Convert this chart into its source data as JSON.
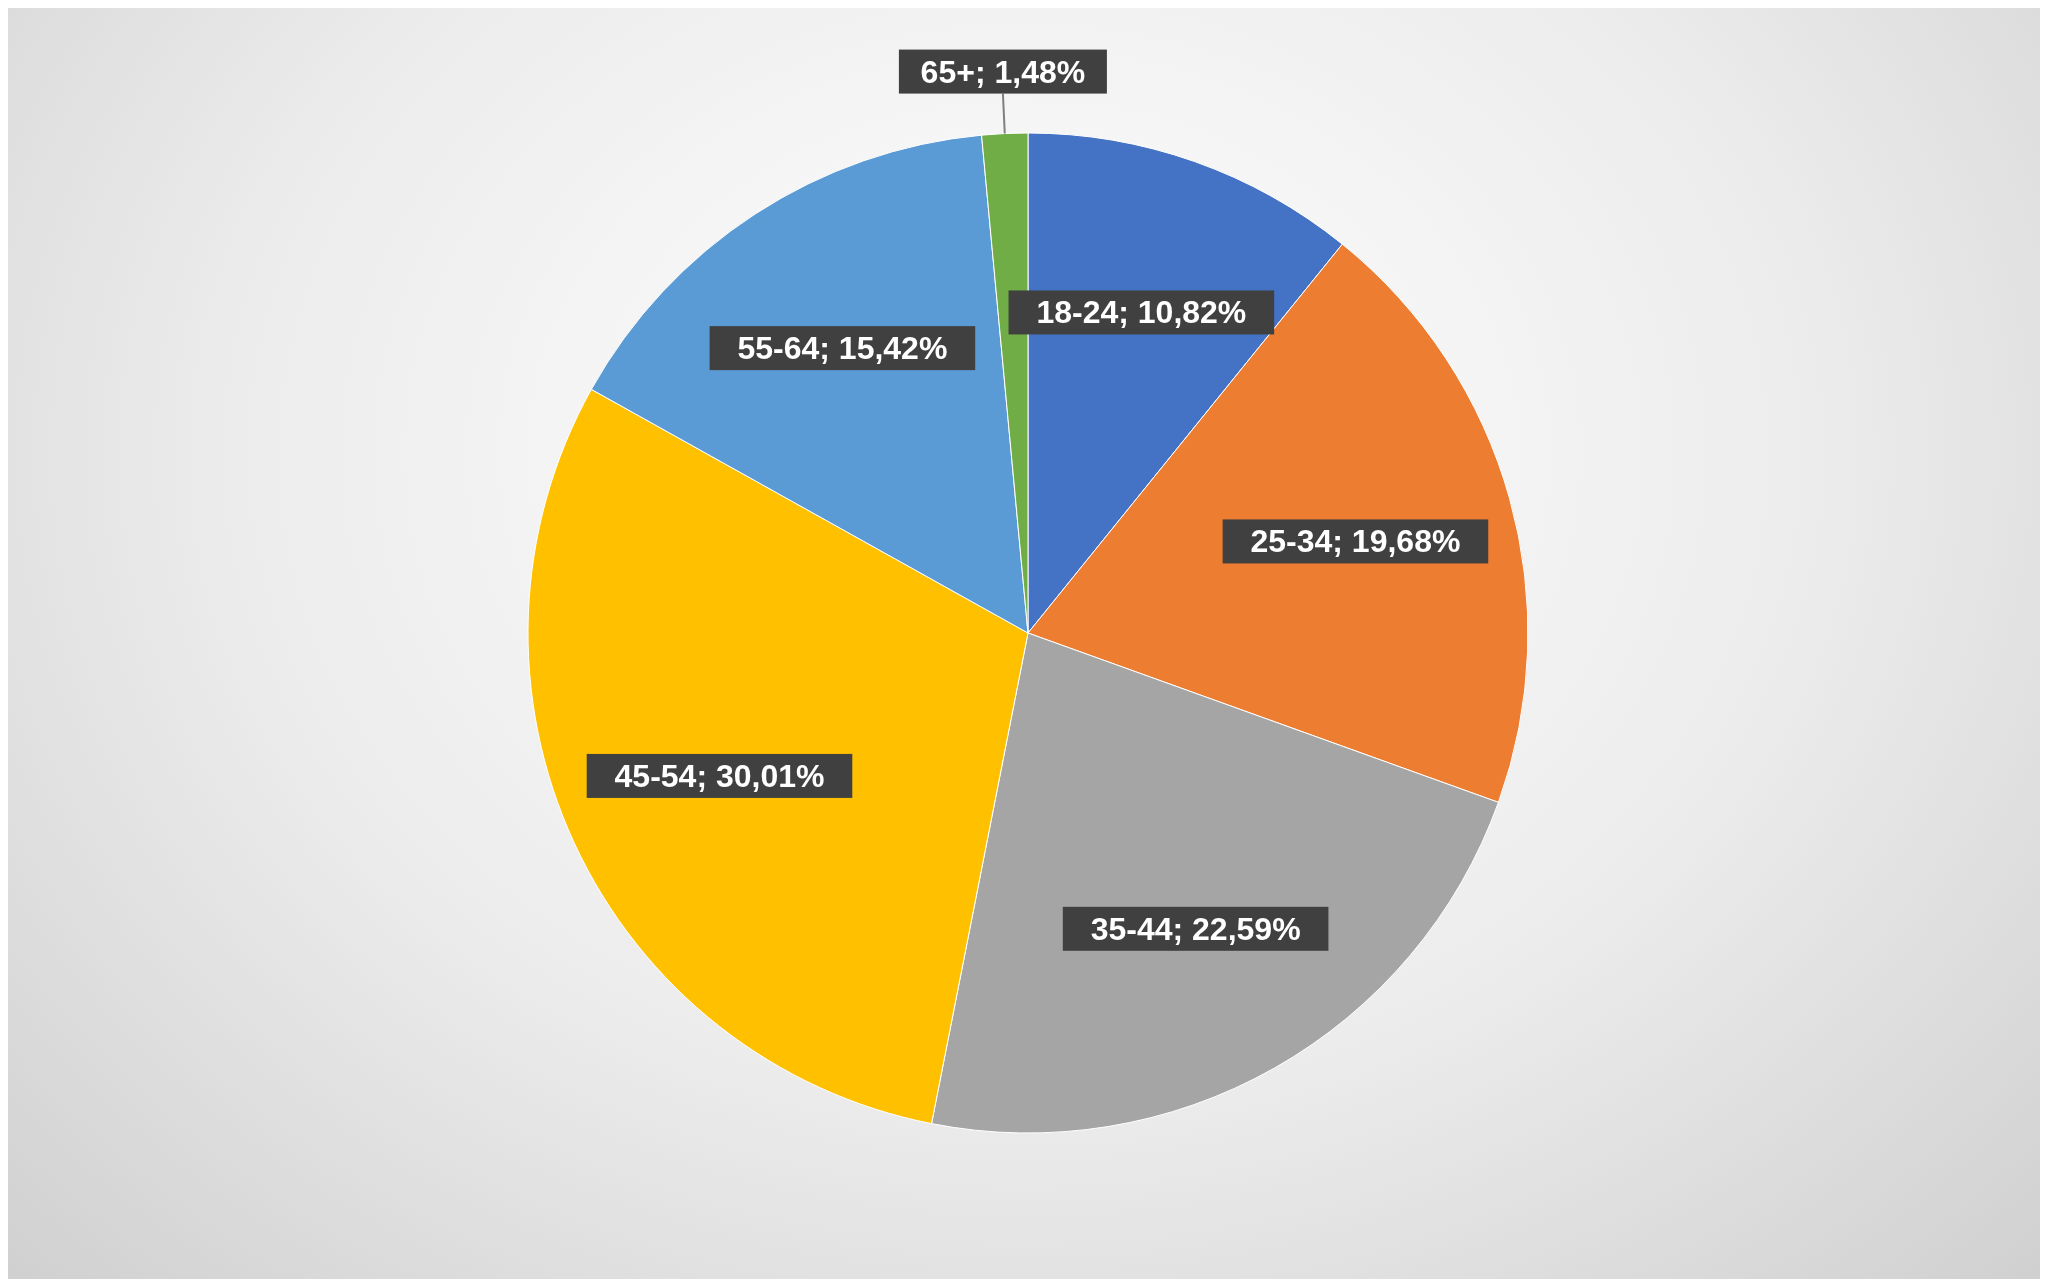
{
  "chart_data": {
    "type": "pie",
    "categories": [
      "18-24",
      "25-34",
      "35-44",
      "45-54",
      "55-64",
      "65+"
    ],
    "values": [
      10.82,
      19.68,
      22.59,
      30.01,
      15.42,
      1.48
    ],
    "colors": [
      "#4472c4",
      "#ed7d31",
      "#a5a5a5",
      "#ffc000",
      "#5b9bd5",
      "#70ad47"
    ],
    "value_labels": [
      "10,82%",
      "19,68%",
      "22,59%",
      "30,01%",
      "15,42%",
      "1,48%"
    ]
  }
}
